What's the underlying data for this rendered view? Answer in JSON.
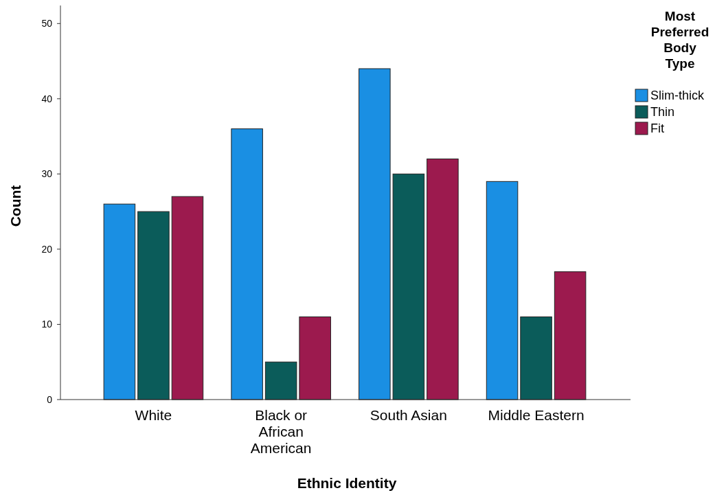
{
  "chart_data": {
    "type": "bar",
    "xlabel": "Ethnic Identity",
    "ylabel": "Count",
    "legend_title": "Most Preferred Body Type",
    "legend": "right",
    "categories": [
      "White",
      "Black or African American",
      "South Asian",
      "Middle Eastern"
    ],
    "series": [
      {
        "name": "Slim-thick",
        "color": "#1a8fe3",
        "values": [
          26,
          36,
          44,
          29
        ]
      },
      {
        "name": "Thin",
        "color": "#0b5c5a",
        "values": [
          25,
          5,
          30,
          11
        ]
      },
      {
        "name": "Fit",
        "color": "#9c1a4e",
        "values": [
          27,
          11,
          32,
          17
        ]
      }
    ],
    "ylim": [
      0,
      52.4
    ],
    "yticks": [
      0,
      10,
      20,
      30,
      40,
      50
    ]
  }
}
